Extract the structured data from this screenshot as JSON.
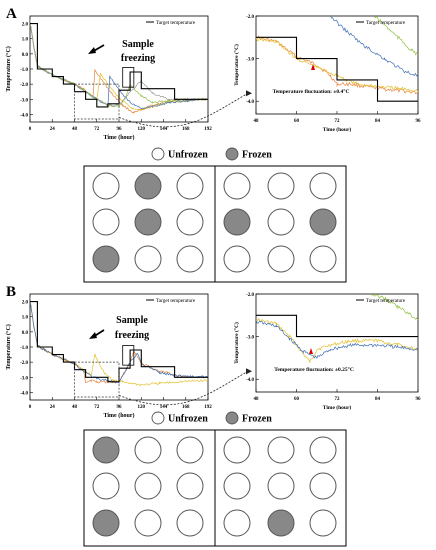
{
  "panels": [
    {
      "label": "A",
      "main": {
        "ylabel": "Temperature (°C)",
        "xlabel": "Time (hour)",
        "legend": "Target temperature",
        "annotation": "Sample\nfreezing",
        "xticks": [
          "0",
          "24",
          "48",
          "72",
          "96",
          "120",
          "144",
          "168",
          "192"
        ],
        "yticks": [
          "-4.0",
          "-3.0",
          "-2.0",
          "-1.0",
          "0.0",
          "1.0",
          "2.0"
        ]
      },
      "inset": {
        "ylabel": "Temperature (°C)",
        "xlabel": "Time (hour)",
        "legend": "Target temperature",
        "annotation": "Temperature fluctuation: ±0.4°C",
        "xticks": [
          "48",
          "60",
          "72",
          "84",
          "96"
        ],
        "yticks": [
          "-2.0",
          "-3.0",
          "-4.0"
        ]
      },
      "legend_unfrozen": "Unfrozen",
      "legend_frozen": "Frozen",
      "grid_frozen": [
        [
          0,
          1,
          0,
          0,
          0,
          0
        ],
        [
          0,
          1,
          0,
          1,
          0,
          1
        ],
        [
          1,
          0,
          0,
          0,
          0,
          0
        ]
      ]
    },
    {
      "label": "B",
      "main": {
        "ylabel": "Temperature (°C)",
        "xlabel": "Time (hour)",
        "legend": "Target temperature",
        "annotation": "Sample\nfreezing",
        "xticks": [
          "0",
          "24",
          "48",
          "72",
          "96",
          "120",
          "144",
          "168",
          "192"
        ],
        "yticks": [
          "-4.0",
          "-3.0",
          "-2.0",
          "-1.0",
          "0.0",
          "1.0",
          "2.0"
        ]
      },
      "inset": {
        "ylabel": "Temperature (°C)",
        "xlabel": "Time (hour)",
        "legend": "Target temperature",
        "annotation": "Temperature fluctuation: ±0.25°C",
        "xticks": [
          "48",
          "60",
          "72",
          "84",
          "96"
        ],
        "yticks": [
          "-2.0",
          "-3.0",
          "-4.0"
        ]
      },
      "legend_unfrozen": "Unfrozen",
      "legend_frozen": "Frozen",
      "grid_frozen": [
        [
          1,
          0,
          0,
          0,
          0,
          0
        ],
        [
          0,
          0,
          0,
          0,
          0,
          0
        ],
        [
          1,
          0,
          0,
          0,
          1,
          0
        ]
      ]
    }
  ],
  "colors": {
    "orange": "#e8843c",
    "yellow": "#e3c12c",
    "blue": "#3f6fb6",
    "green": "#8fbf3f",
    "gray": "#9a9a9a",
    "frozen": "#888888"
  },
  "chart_data": [
    {
      "type": "line",
      "xlabel": "Time (hour)",
      "ylabel": "Temperature (°C)",
      "xlim": [
        0,
        192
      ],
      "ylim": [
        -4.5,
        2.5
      ],
      "target": {
        "x": [
          0,
          8,
          8,
          24,
          24,
          36,
          36,
          48,
          48,
          60,
          60,
          72,
          72,
          84,
          84,
          96,
          96,
          108,
          108,
          120,
          120,
          156,
          156,
          192
        ],
        "y": [
          2,
          2,
          -1,
          -1,
          -1.5,
          -1.5,
          -2.0,
          -2.0,
          -2.5,
          -2.5,
          -3.0,
          -3.0,
          -3.5,
          -3.5,
          -3.3,
          -3.3,
          -2.4,
          -2.4,
          -1.2,
          -1.2,
          -2.3,
          -2.3,
          -3.0,
          -3.0
        ]
      },
      "series": [
        {
          "x": [
            0,
            4,
            8,
            16,
            24,
            36,
            48,
            60,
            68,
            70,
            76,
            88,
            100,
            112,
            120,
            132,
            150,
            170,
            192
          ],
          "y": [
            2.2,
            0.5,
            -0.8,
            -1.1,
            -1.4,
            -1.7,
            -2.0,
            -2.4,
            -2.8,
            -1.1,
            -1.6,
            -2.6,
            -3.4,
            -3.9,
            -3.7,
            -3.4,
            -3.1,
            -3.0,
            -3.0
          ]
        },
        {
          "x": [
            0,
            4,
            8,
            16,
            24,
            36,
            48,
            60,
            72,
            76,
            84,
            96,
            110,
            120,
            132,
            150,
            170,
            192
          ],
          "y": [
            2.2,
            0.5,
            -0.8,
            -1.1,
            -1.4,
            -1.7,
            -2.0,
            -2.5,
            -3.0,
            -1.3,
            -2.0,
            -2.9,
            -3.6,
            -3.7,
            -3.5,
            -3.2,
            -3.1,
            -3.0
          ]
        },
        {
          "x": [
            0,
            4,
            8,
            16,
            24,
            36,
            48,
            60,
            72,
            84,
            86,
            96,
            108,
            120,
            132,
            150,
            170,
            192
          ],
          "y": [
            2.2,
            0.5,
            -0.8,
            -1.1,
            -1.4,
            -1.7,
            -2.0,
            -2.5,
            -3.0,
            -3.4,
            -1.5,
            -2.4,
            -3.2,
            -3.6,
            -3.5,
            -3.2,
            -3.1,
            -3.0
          ]
        },
        {
          "x": [
            0,
            4,
            8,
            16,
            24,
            36,
            48,
            60,
            72,
            84,
            96,
            104,
            108,
            120,
            132,
            150,
            170,
            192
          ],
          "y": [
            2.2,
            0.5,
            -0.8,
            -1.1,
            -1.4,
            -1.7,
            -2.0,
            -2.5,
            -3.0,
            -3.4,
            -3.5,
            -2.8,
            -2.0,
            -2.8,
            -3.2,
            -3.1,
            -3.0,
            -3.0
          ]
        },
        {
          "x": [
            0,
            4,
            8,
            16,
            24,
            36,
            48,
            60,
            72,
            84,
            96,
            108,
            120,
            132,
            150,
            170,
            192
          ],
          "y": [
            2.2,
            0.5,
            -0.8,
            -1.1,
            -1.4,
            -1.7,
            -2.0,
            -2.5,
            -3.0,
            -3.4,
            -3.4,
            -2.5,
            -1.8,
            -2.6,
            -3.0,
            -3.0,
            -3.0
          ]
        }
      ]
    },
    {
      "type": "line",
      "xlabel": "Time (hour)",
      "ylabel": "Temperature (°C)",
      "xlim": [
        48,
        96
      ],
      "ylim": [
        -4.3,
        -2.0
      ],
      "target": {
        "x": [
          48,
          60,
          60,
          72,
          72,
          84,
          84,
          96
        ],
        "y": [
          -2.5,
          -2.5,
          -3.0,
          -3.0,
          -3.5,
          -3.5,
          -4.0,
          -4.0
        ]
      },
      "series": [
        {
          "x": [
            48,
            54,
            60,
            66,
            70,
            72,
            76,
            84,
            96
          ],
          "y": [
            -2.5,
            -2.6,
            -2.95,
            -3.15,
            -3.4,
            -3.6,
            -3.6,
            -3.7,
            -3.8
          ]
        },
        {
          "x": [
            48,
            54,
            60,
            66,
            72,
            78,
            84,
            90,
            96
          ],
          "y": [
            -2.55,
            -2.6,
            -3.0,
            -3.2,
            -3.4,
            -3.6,
            -3.65,
            -3.7,
            -3.75
          ]
        },
        {
          "x": [
            70,
            74,
            80,
            86,
            92,
            96
          ],
          "y": [
            -2.0,
            -2.3,
            -2.7,
            -3.0,
            -3.3,
            -3.4
          ]
        },
        {
          "x": [
            83,
            86,
            90,
            94,
            96
          ],
          "y": [
            -2.0,
            -2.2,
            -2.5,
            -2.8,
            -2.9
          ]
        }
      ]
    },
    {
      "type": "line",
      "xlabel": "Time (hour)",
      "ylabel": "Temperature (°C)",
      "xlim": [
        0,
        192
      ],
      "ylim": [
        -4.5,
        2.5
      ],
      "target": {
        "x": [
          0,
          8,
          8,
          24,
          24,
          36,
          36,
          48,
          48,
          60,
          60,
          84,
          84,
          96,
          96,
          108,
          108,
          120,
          120,
          156,
          156,
          192
        ],
        "y": [
          2,
          2,
          -1,
          -1,
          -1.5,
          -1.5,
          -2.0,
          -2.0,
          -2.5,
          -2.5,
          -3.0,
          -3.0,
          -3.3,
          -3.3,
          -2.4,
          -2.4,
          -1.2,
          -1.2,
          -2.3,
          -2.3,
          -3.0,
          -3.0
        ]
      },
      "series": [
        {
          "x": [
            0,
            4,
            8,
            16,
            24,
            36,
            48,
            58,
            60,
            66,
            72,
            84,
            96,
            108,
            112,
            120,
            140,
            160,
            192
          ],
          "y": [
            2.2,
            0.4,
            -0.9,
            -1.2,
            -1.5,
            -1.8,
            -2.1,
            -2.6,
            -3.3,
            -3.2,
            -3.3,
            -3.3,
            -3.3,
            -2.0,
            -1.3,
            -2.1,
            -2.6,
            -2.9,
            -3.0
          ]
        },
        {
          "x": [
            0,
            4,
            8,
            16,
            24,
            36,
            48,
            60,
            66,
            70,
            74,
            80,
            90,
            100,
            110,
            120,
            140,
            160,
            192
          ],
          "y": [
            2.2,
            0.4,
            -0.9,
            -1.2,
            -1.5,
            -1.8,
            -2.1,
            -2.6,
            -2.9,
            -1.5,
            -2.0,
            -2.7,
            -3.2,
            -3.3,
            -3.4,
            -3.5,
            -3.4,
            -3.3,
            -3.2
          ]
        },
        {
          "x": [
            0,
            4,
            8,
            16,
            24,
            36,
            48,
            60,
            72,
            84,
            96,
            108,
            116,
            120,
            140,
            160,
            192
          ],
          "y": [
            2.2,
            0.4,
            -0.9,
            -1.2,
            -1.5,
            -1.8,
            -2.1,
            -2.7,
            -3.1,
            -3.2,
            -3.4,
            -2.0,
            -1.4,
            -2.1,
            -2.7,
            -2.9,
            -3.0
          ]
        }
      ]
    },
    {
      "type": "line",
      "xlabel": "Time (hour)",
      "ylabel": "Temperature (°C)",
      "xlim": [
        48,
        96
      ],
      "ylim": [
        -4.3,
        -2.0
      ],
      "target": {
        "x": [
          48,
          60,
          60,
          96
        ],
        "y": [
          -2.5,
          -2.5,
          -3.0,
          -3.0
        ]
      },
      "series": [
        {
          "x": [
            48,
            54,
            58,
            62,
            64,
            66,
            70,
            76,
            84,
            90,
            96
          ],
          "y": [
            -2.6,
            -2.7,
            -3.0,
            -3.4,
            -3.6,
            -3.3,
            -3.2,
            -3.1,
            -3.1,
            -3.2,
            -3.3
          ]
        },
        {
          "x": [
            48,
            54,
            58,
            62,
            66,
            70,
            76,
            84,
            90,
            96
          ],
          "y": [
            -2.65,
            -2.75,
            -3.05,
            -3.35,
            -3.5,
            -3.3,
            -3.2,
            -3.2,
            -3.25,
            -3.3
          ]
        },
        {
          "x": [
            82,
            86,
            90,
            94,
            96
          ],
          "y": [
            -2.0,
            -2.1,
            -2.3,
            -2.5,
            -2.6
          ]
        }
      ]
    }
  ]
}
